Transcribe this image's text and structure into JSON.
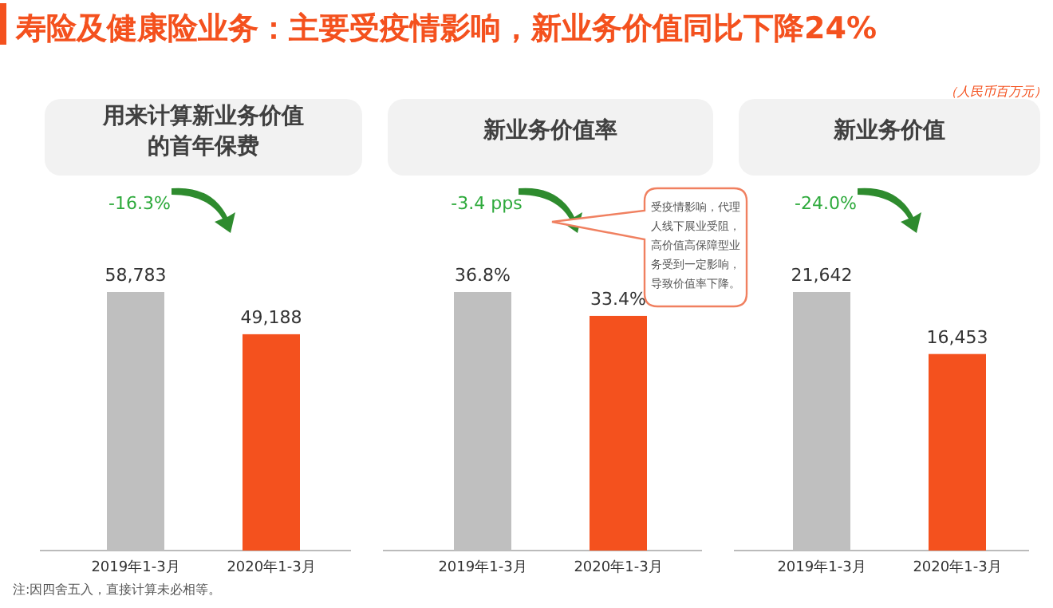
{
  "chart_data": [
    {
      "type": "bar",
      "title": "用来计算新业务价值的首年保费",
      "categories": [
        "2019年1-3月",
        "2020年1-3月"
      ],
      "values": [
        58783,
        49188
      ],
      "value_labels": [
        "58,783",
        "49,188"
      ],
      "colors": [
        "#bfbfbf",
        "#f4511e"
      ],
      "annotations": [
        "寿险及健康险业务：主要受疫情影响，新业务价值同比下降24%",
        "-16.3%",
        "注:因四舍五入，直接计算未必相等。"
      ]
    },
    {
      "type": "bar",
      "title": "新业务价值率",
      "categories": [
        "2019年1-3月",
        "2020年1-3月"
      ],
      "values": [
        36.8,
        33.4
      ],
      "value_labels": [
        "36.8%",
        "33.4%"
      ],
      "colors": [
        "#bfbfbf",
        "#f4511e"
      ],
      "annotations": [
        "-3.4 pps",
        "受疫情影响，代理人线下展业受阻，高价值高保障型业务受到一定影响，导致价值率下降。"
      ]
    },
    {
      "type": "bar",
      "title": "新业务价值",
      "categories": [
        "2019年1-3月",
        "2020年1-3月"
      ],
      "values": [
        21642,
        16453
      ],
      "value_labels": [
        "21,642",
        "16,453"
      ],
      "colors": [
        "#bfbfbf",
        "#f4511e"
      ],
      "annotations": [
        "-24.0%",
        "（人民币百万元）"
      ]
    }
  ]
}
